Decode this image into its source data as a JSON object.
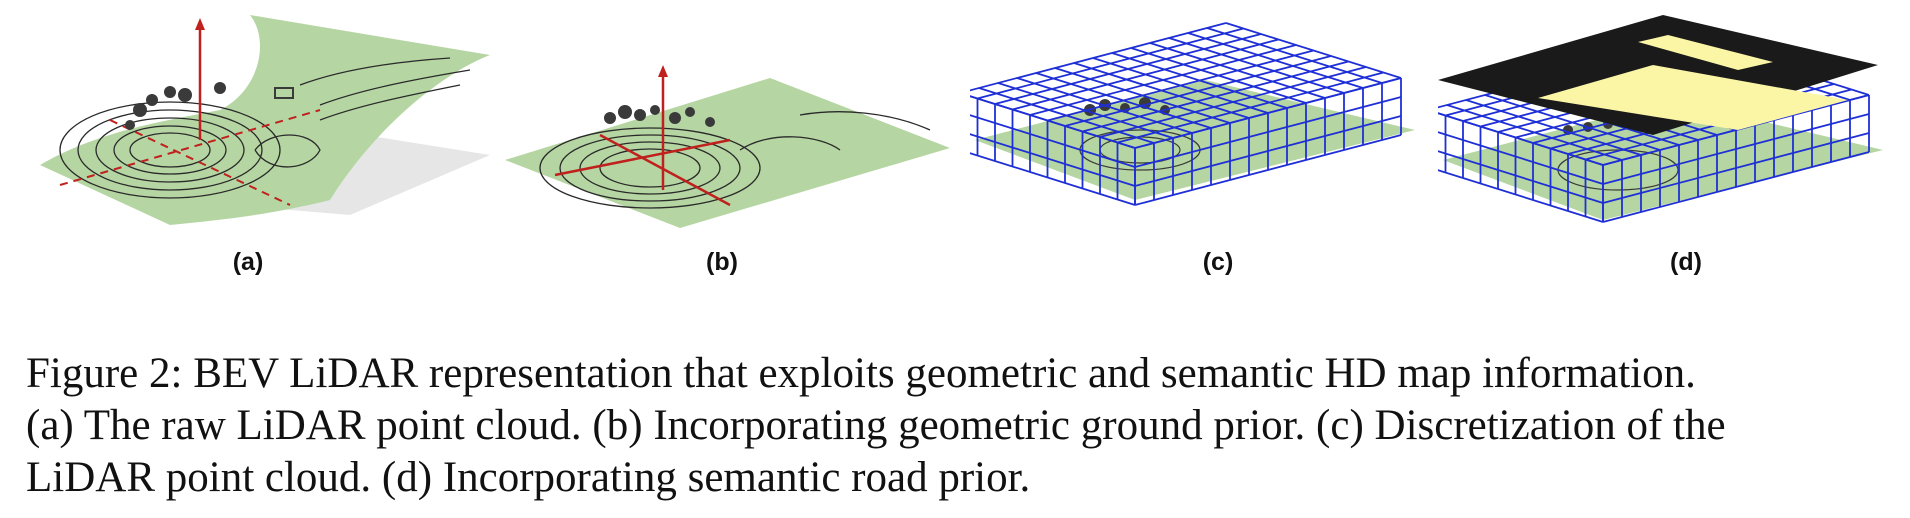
{
  "figure": {
    "subfigures": [
      {
        "label": "(a)"
      },
      {
        "label": "(b)"
      },
      {
        "label": "(c)"
      },
      {
        "label": "(d)"
      }
    ],
    "caption_lines": [
      "Figure 2: BEV LiDAR representation that exploits geometric and semantic HD map information.",
      "(a) The raw LiDAR point cloud. (b) Incorporating geometric ground prior. (c) Discretization of the",
      "LiDAR point cloud. (d) Incorporating semantic road prior."
    ]
  },
  "colors": {
    "ground": "#b5d6a2",
    "grid": "#1f2fd6",
    "axis": "#c0201e",
    "road": "#fbf5a6",
    "offroad": "#1a1a1a",
    "points": "#2a2a2a"
  }
}
